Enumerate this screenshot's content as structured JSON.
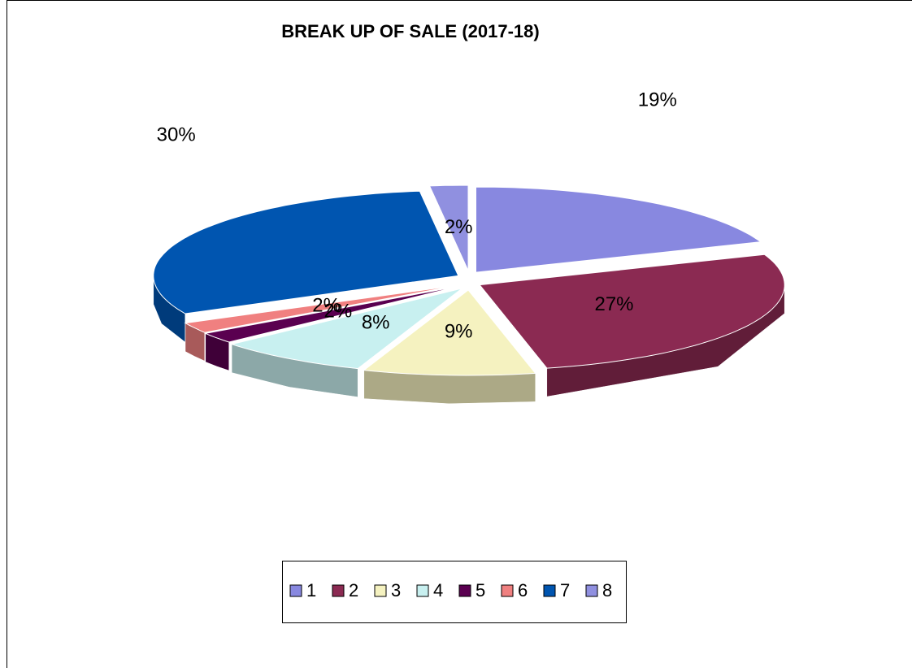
{
  "chart_data": {
    "type": "pie",
    "title": "BREAK UP OF SALE (2017-18)",
    "categories": [
      "1",
      "2",
      "3",
      "4",
      "5",
      "6",
      "7",
      "8"
    ],
    "values": [
      19,
      27,
      9,
      8,
      2,
      2,
      30,
      2
    ],
    "value_labels": [
      "19%",
      "27%",
      "9%",
      "8%",
      "2%",
      "2%",
      "30%",
      "2%"
    ],
    "colors": [
      "#8888e0",
      "#8b2a52",
      "#f5f2c0",
      "#c8f0f0",
      "#5a0050",
      "#f08080",
      "#0055b0",
      "#9090e0"
    ],
    "legend": "bottom"
  }
}
